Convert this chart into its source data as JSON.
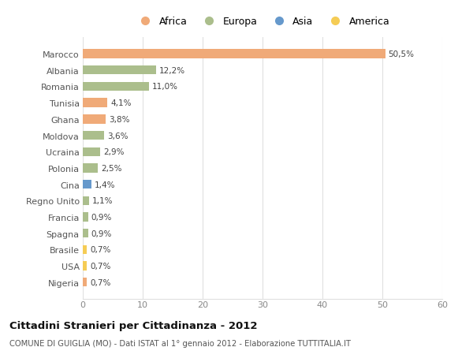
{
  "categories": [
    "Marocco",
    "Albania",
    "Romania",
    "Tunisia",
    "Ghana",
    "Moldova",
    "Ucraina",
    "Polonia",
    "Cina",
    "Regno Unito",
    "Francia",
    "Spagna",
    "Brasile",
    "USA",
    "Nigeria"
  ],
  "values": [
    50.5,
    12.2,
    11.0,
    4.1,
    3.8,
    3.6,
    2.9,
    2.5,
    1.4,
    1.1,
    0.9,
    0.9,
    0.7,
    0.7,
    0.7
  ],
  "labels": [
    "50,5%",
    "12,2%",
    "11,0%",
    "4,1%",
    "3,8%",
    "3,6%",
    "2,9%",
    "2,5%",
    "1,4%",
    "1,1%",
    "0,9%",
    "0,9%",
    "0,7%",
    "0,7%",
    "0,7%"
  ],
  "colors": [
    "#F0AA78",
    "#ABBE8C",
    "#ABBE8C",
    "#F0AA78",
    "#F0AA78",
    "#ABBE8C",
    "#ABBE8C",
    "#ABBE8C",
    "#6699CC",
    "#ABBE8C",
    "#ABBE8C",
    "#ABBE8C",
    "#F5CC55",
    "#F5CC55",
    "#F0AA78"
  ],
  "legend": [
    {
      "label": "Africa",
      "color": "#F0AA78"
    },
    {
      "label": "Europa",
      "color": "#ABBE8C"
    },
    {
      "label": "Asia",
      "color": "#6699CC"
    },
    {
      "label": "America",
      "color": "#F5CC55"
    }
  ],
  "xlim": [
    0,
    60
  ],
  "xticks": [
    0,
    10,
    20,
    30,
    40,
    50,
    60
  ],
  "title": "Cittadini Stranieri per Cittadinanza - 2012",
  "subtitle": "COMUNE DI GUIGLIA (MO) - Dati ISTAT al 1° gennaio 2012 - Elaborazione TUTTITALIA.IT",
  "background_color": "#ffffff",
  "grid_color": "#e0e0e0",
  "bar_height": 0.55
}
